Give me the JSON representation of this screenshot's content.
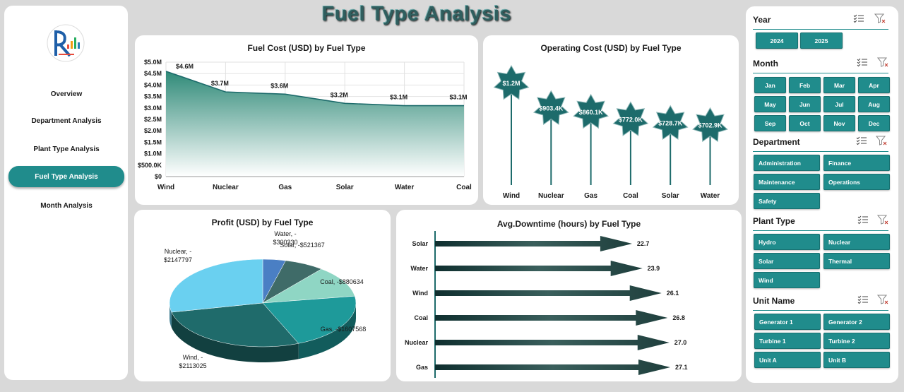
{
  "title": "Fuel Type Analysis",
  "colors": {
    "teal": "#208c8c",
    "dark_teal": "#1d6b6b",
    "area_fill": "#2f8a78"
  },
  "nav": {
    "logo_icon": "company-logo",
    "items": [
      {
        "label": "Overview",
        "active": false
      },
      {
        "label": "Department Analysis",
        "active": false
      },
      {
        "label": "Plant Type Analysis",
        "active": false
      },
      {
        "label": "Fuel Type Analysis",
        "active": true
      },
      {
        "label": "Month Analysis",
        "active": false
      }
    ]
  },
  "slicers": {
    "clear_filter_icon": "clear-filter-icon",
    "multi_select_icon": "multi-select-icon",
    "year": {
      "title": "Year",
      "options": [
        "2024",
        "2025"
      ]
    },
    "month": {
      "title": "Month",
      "options": [
        "Jan",
        "Feb",
        "Mar",
        "Apr",
        "May",
        "Jun",
        "Jul",
        "Aug",
        "Sep",
        "Oct",
        "Nov",
        "Dec"
      ]
    },
    "department": {
      "title": "Department",
      "options": [
        "Administration",
        "Finance",
        "Maintenance",
        "Operations",
        "Safety"
      ]
    },
    "plant_type": {
      "title": "Plant Type",
      "options": [
        "Hydro",
        "Nuclear",
        "Solar",
        "Thermal",
        "Wind"
      ]
    },
    "unit_name": {
      "title": "Unit Name",
      "options": [
        "Generator 1",
        "Generator 2",
        "Turbine 1",
        "Turbine 2",
        "Unit A",
        "Unit B"
      ]
    }
  },
  "chart_data": [
    {
      "type": "area",
      "title": "Fuel Cost (USD) by Fuel Type",
      "categories": [
        "Wind",
        "Nuclear",
        "Gas",
        "Solar",
        "Water",
        "Coal"
      ],
      "values": [
        4600000,
        3700000,
        3600000,
        3200000,
        3100000,
        3100000
      ],
      "data_labels": [
        "$4.6M",
        "$3.7M",
        "$3.6M",
        "$3.2M",
        "$3.1M",
        "$3.1M"
      ],
      "ylim": [
        0,
        5000000
      ],
      "ytick_labels": [
        "$0",
        "$500.0K",
        "$1.0M",
        "$1.5M",
        "$2.0M",
        "$2.5M",
        "$3.0M",
        "$3.5M",
        "$4.0M",
        "$4.5M",
        "$5.0M"
      ],
      "grid": true
    },
    {
      "type": "bar",
      "title": "Operating Cost (USD) by Fuel Type",
      "categories": [
        "Wind",
        "Nuclear",
        "Gas",
        "Coal",
        "Solar",
        "Water"
      ],
      "values": [
        1200000,
        903400,
        860100,
        772000,
        728700,
        702900
      ],
      "data_labels": [
        "$1.2M",
        "$903.4K",
        "$860.1K",
        "$772.0K",
        "$728.7K",
        "$702.9K"
      ],
      "marker": "star"
    },
    {
      "type": "pie",
      "title": "Profit (USD) by Fuel Type",
      "categories": [
        "Water",
        "Solar",
        "Coal",
        "Gas",
        "Wind",
        "Nuclear"
      ],
      "values": [
        -300330,
        -521367,
        -880634,
        -1607568,
        -2113025,
        -2147797
      ],
      "labels": [
        [
          "Water, -",
          "$300330"
        ],
        [
          "Solar, -$521367"
        ],
        [
          "Coal, -$880634"
        ],
        [
          "Gas, -$1607568"
        ],
        [
          "Wind, -",
          "$2113025"
        ],
        [
          "Nuclear, -",
          "$2147797"
        ]
      ],
      "colors": [
        "#4a7fc4",
        "#3f6b68",
        "#8fd6c4",
        "#1e9a9a",
        "#1f6b6b",
        "#6ad0f0"
      ]
    },
    {
      "type": "bar",
      "orientation": "horizontal",
      "title": "Avg.Downtime (hours) by Fuel Type",
      "categories": [
        "Solar",
        "Water",
        "Wind",
        "Coal",
        "Nuclear",
        "Gas"
      ],
      "values": [
        22.7,
        23.9,
        26.1,
        26.8,
        27.0,
        27.1
      ],
      "data_labels": [
        "22.7",
        "23.9",
        "26.1",
        "26.8",
        "27.0",
        "27.1"
      ],
      "marker": "arrow"
    }
  ]
}
